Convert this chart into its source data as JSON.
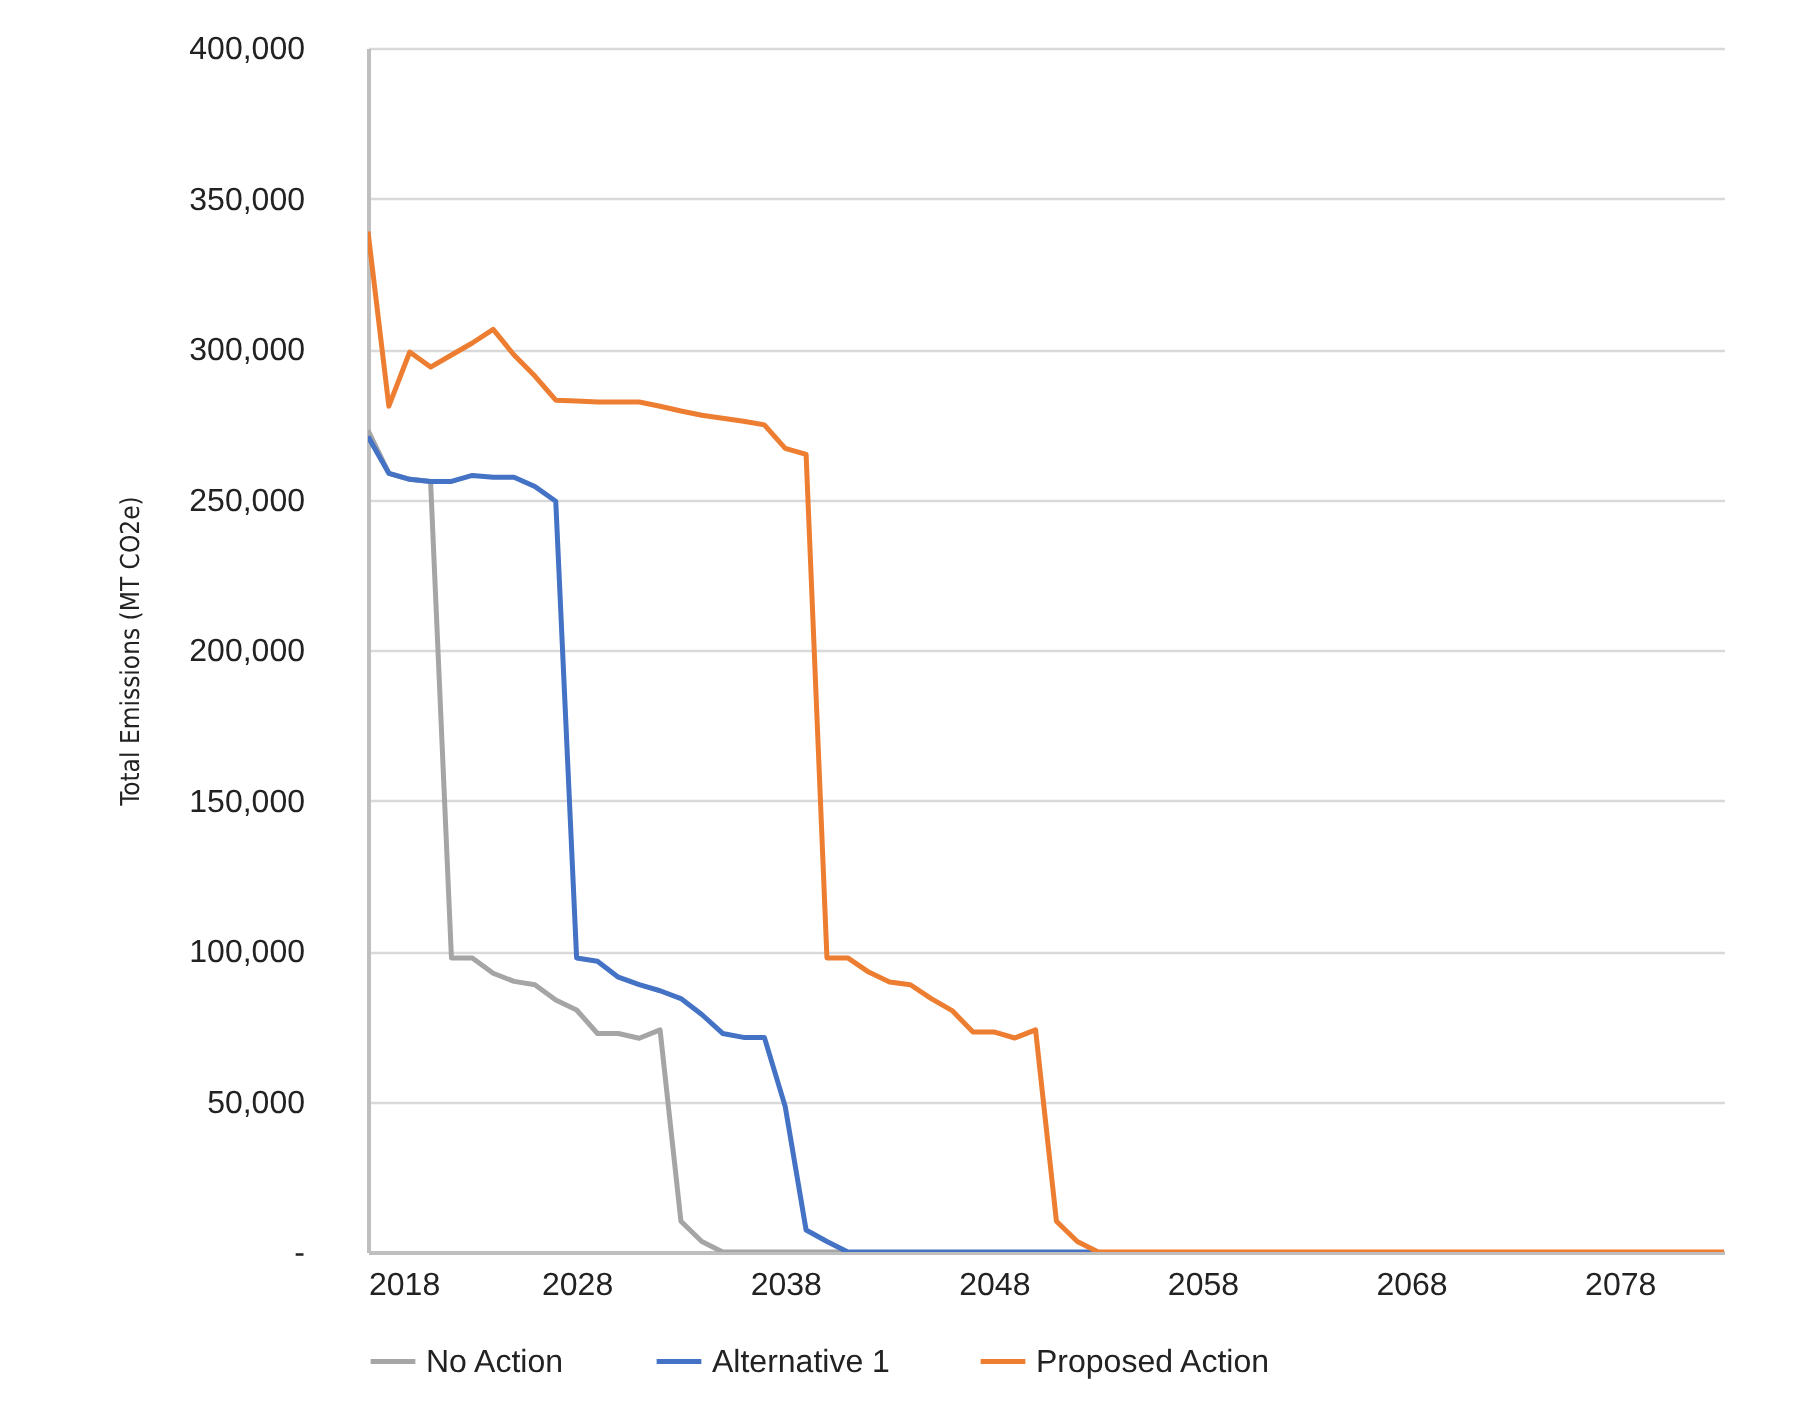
{
  "chart_data": {
    "type": "line",
    "ylabel": "Total Emissions (MT CO2e)",
    "x": [
      2018,
      2019,
      2020,
      2021,
      2022,
      2023,
      2024,
      2025,
      2026,
      2027,
      2028,
      2029,
      2030,
      2031,
      2032,
      2033,
      2034,
      2035,
      2036,
      2037,
      2038,
      2039,
      2040,
      2041,
      2042,
      2043,
      2044,
      2045,
      2046,
      2047,
      2048,
      2049,
      2050,
      2051,
      2052,
      2053,
      2054,
      2055,
      2056,
      2057,
      2058,
      2059,
      2060,
      2061,
      2062,
      2063,
      2064,
      2065,
      2066,
      2067,
      2068,
      2069,
      2070,
      2071,
      2072,
      2073,
      2074,
      2075,
      2076,
      2077,
      2078,
      2079,
      2080,
      2081,
      2082,
      2083
    ],
    "xlim": [
      2018,
      2083
    ],
    "xticks": [
      2018,
      2028,
      2038,
      2048,
      2058,
      2068,
      2078
    ],
    "ylim": [
      0,
      400000
    ],
    "yticks": [
      {
        "value": 0,
        "label": "-"
      },
      {
        "value": 50000,
        "label": "50,000"
      },
      {
        "value": 100000,
        "label": "100,000"
      },
      {
        "value": 150000,
        "label": "150,000"
      },
      {
        "value": 200000,
        "label": "200,000"
      },
      {
        "value": 250000,
        "label": "250,000"
      },
      {
        "value": 300000,
        "label": "300,000"
      },
      {
        "value": 350000,
        "label": "350,000"
      },
      {
        "value": 400000,
        "label": "400,000"
      }
    ],
    "grid": "y",
    "legend": "bottom",
    "series": [
      {
        "name": "No Action",
        "color": "#a5a5a5",
        "values": [
          273000,
          258700,
          256700,
          256000,
          97700,
          97700,
          92600,
          89900,
          88800,
          83700,
          80400,
          72600,
          72600,
          71000,
          73800,
          10200,
          3500,
          0,
          0,
          0,
          0,
          0,
          0,
          0,
          null,
          null,
          null,
          null,
          null,
          null,
          null,
          null,
          null,
          null,
          null,
          null,
          null,
          null,
          null,
          null,
          null,
          null,
          null,
          null,
          null,
          null,
          null,
          null,
          null,
          null,
          null,
          null,
          null,
          null,
          null,
          null,
          null,
          null,
          null,
          null,
          null,
          null,
          null,
          null,
          null,
          null
        ]
      },
      {
        "name": "Alternative 1",
        "color": "#4472c4",
        "values": [
          270900,
          258700,
          256700,
          256000,
          256000,
          258000,
          257400,
          257400,
          254300,
          249400,
          97700,
          96600,
          91300,
          88800,
          86800,
          84200,
          78900,
          72600,
          71300,
          71300,
          48300,
          7300,
          3500,
          0,
          0,
          0,
          0,
          0,
          0,
          0,
          0,
          0,
          0,
          0,
          0,
          0,
          null,
          null,
          null,
          null,
          null,
          null,
          null,
          null,
          null,
          null,
          null,
          null,
          null,
          null,
          null,
          null,
          null,
          null,
          null,
          null,
          null,
          null,
          null,
          null,
          null,
          null,
          null,
          null,
          null,
          null
        ]
      },
      {
        "name": "Proposed Action",
        "color": "#ed7d31",
        "values": [
          339000,
          281000,
          299000,
          294000,
          298000,
          302000,
          306500,
          298000,
          291000,
          283000,
          282700,
          282400,
          282400,
          282400,
          281000,
          279400,
          278000,
          277000,
          276000,
          274800,
          267000,
          265000,
          97700,
          97700,
          93000,
          89700,
          88800,
          84200,
          80200,
          73100,
          73100,
          71100,
          73800,
          10200,
          3500,
          0,
          0,
          0,
          0,
          0,
          0,
          0,
          0,
          0,
          0,
          0,
          0,
          0,
          0,
          0,
          0,
          0,
          0,
          0,
          0,
          0,
          0,
          0,
          0,
          0,
          0,
          0,
          0,
          0,
          0,
          0
        ]
      }
    ]
  }
}
